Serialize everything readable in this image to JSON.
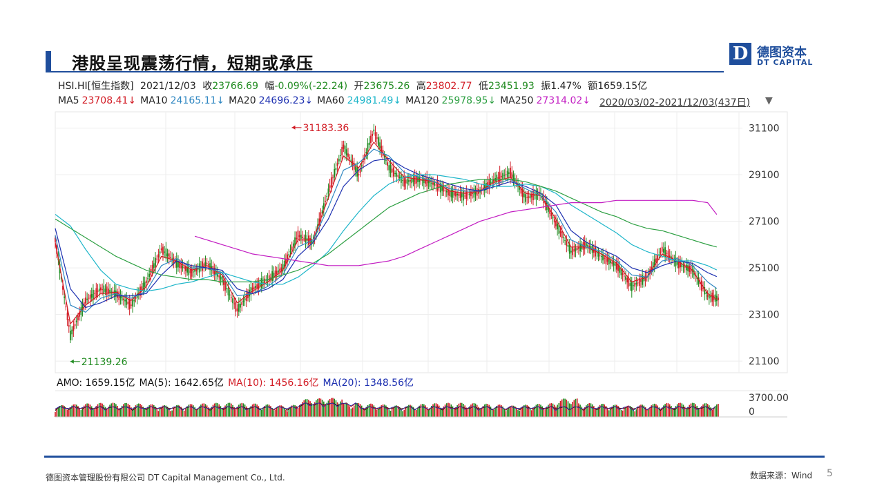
{
  "slide": {
    "title": "港股呈现震荡行情，短期或承压",
    "logo_mark": "D",
    "logo_cn": "德图资本",
    "logo_en": "DT CAPITAL",
    "footer_company": "德图资本管理股份有限公司 DT Capital Management Co., Ltd.",
    "source": "数据来源：Wind",
    "page": "5"
  },
  "quote": {
    "code": "HSI.HI[恒生指数]",
    "date": "2021/12/03",
    "close_label": "收",
    "close": "23766.69",
    "change_label": "幅",
    "change": "-0.09%(-22.24)",
    "open_label": "开",
    "open": "23675.26",
    "high_label": "高",
    "high": "23802.77",
    "low_label": "低",
    "low": "23451.93",
    "amplitude_label": "振",
    "amplitude": "1.47%",
    "amount_label": "额",
    "amount": "1659.15亿"
  },
  "ma_legend": [
    {
      "name": "MA5",
      "value": "23708.41↓",
      "color": "#d21b24"
    },
    {
      "name": "MA10",
      "value": "24165.11↓",
      "color": "#2e86c1"
    },
    {
      "name": "MA20",
      "value": "24696.23↓",
      "color": "#1c2fb0"
    },
    {
      "name": "MA60",
      "value": "24981.49↓",
      "color": "#1cb5c9"
    },
    {
      "name": "MA120",
      "value": "25978.95↓",
      "color": "#2ea043"
    },
    {
      "name": "MA250",
      "value": "27314.02↓",
      "color": "#c21cc2"
    }
  ],
  "range": "2020/03/02-2021/12/03(437日)",
  "amo": [
    {
      "label": "AMO: 1659.15亿",
      "color": "#111111"
    },
    {
      "label": "MA(5): 1642.65亿",
      "color": "#111111"
    },
    {
      "label": "MA(10): 1456.16亿",
      "color": "#d21b24"
    },
    {
      "label": "MA(20): 1348.56亿",
      "color": "#1c2fb0"
    }
  ],
  "chart_data": {
    "type": "line",
    "title": "HSI.HI[恒生指数]",
    "ylim": [
      20600,
      31800
    ],
    "y_ticks": [
      31100,
      29100,
      27100,
      25100,
      23100,
      21100
    ],
    "volume_ticks": [
      "3700.00",
      "0"
    ],
    "volume_ylim": [
      0,
      3700
    ],
    "annotations": [
      {
        "label": "31183.36",
        "x": 155,
        "y": 31183.36,
        "color": "#d21b24"
      },
      {
        "label": "21139.26",
        "x": 9,
        "y": 21139.26,
        "color": "#1f8a1f"
      }
    ],
    "x": [
      0,
      10,
      20,
      30,
      40,
      50,
      60,
      70,
      80,
      90,
      100,
      110,
      120,
      130,
      140,
      150,
      160,
      170,
      180,
      190,
      200,
      210,
      220,
      230,
      240,
      250,
      260,
      270,
      280,
      290,
      300,
      310,
      320,
      330,
      340,
      350,
      360,
      370,
      380,
      390,
      400,
      410,
      420,
      430,
      437
    ],
    "series": [
      {
        "name": "HSI.HI[恒生指数]",
        "color": "#d21b24",
        "values": [
          26300,
          22200,
          23700,
          24200,
          24000,
          23500,
          24500,
          25900,
          25300,
          24900,
          25300,
          24600,
          23300,
          24200,
          24600,
          25100,
          26500,
          26200,
          28400,
          30300,
          29100,
          31000,
          29400,
          28800,
          28900,
          28700,
          28300,
          28200,
          28400,
          28900,
          29200,
          28100,
          28300,
          27000,
          25800,
          26100,
          25600,
          25200,
          24300,
          24700,
          25900,
          25300,
          25000,
          23900,
          23770
        ]
      },
      {
        "name": "MA5",
        "color": "#d21b24",
        "values": [
          26200,
          22700,
          23500,
          24000,
          24050,
          23700,
          24300,
          25600,
          25400,
          25000,
          25200,
          24800,
          23600,
          24100,
          24500,
          25000,
          26300,
          26300,
          28100,
          29900,
          29400,
          30500,
          29700,
          29000,
          28900,
          28800,
          28400,
          28300,
          28400,
          28800,
          29000,
          28300,
          28200,
          27200,
          26000,
          26000,
          25700,
          25300,
          24500,
          24700,
          25700,
          25400,
          25000,
          24000,
          23710
        ]
      },
      {
        "name": "MA10",
        "color": "#2e86c1",
        "values": [
          26500,
          23500,
          23200,
          23800,
          24000,
          23800,
          24100,
          25200,
          25500,
          25100,
          25100,
          24900,
          23900,
          24000,
          24300,
          24800,
          26000,
          26300,
          27700,
          29300,
          29600,
          30200,
          29900,
          29200,
          29000,
          28800,
          28500,
          28400,
          28400,
          28700,
          28900,
          28500,
          28200,
          27500,
          26300,
          26000,
          25800,
          25400,
          24800,
          24700,
          25400,
          25500,
          25200,
          24500,
          24170
        ]
      },
      {
        "name": "MA20",
        "color": "#1c2fb0",
        "values": [
          26800,
          24200,
          23400,
          23600,
          23900,
          23900,
          24000,
          24800,
          25400,
          25200,
          25100,
          25000,
          24200,
          24000,
          24200,
          24600,
          25600,
          26200,
          27200,
          28600,
          29300,
          29700,
          29800,
          29400,
          29100,
          28900,
          28700,
          28500,
          28400,
          28600,
          28800,
          28600,
          28300,
          27800,
          26700,
          26200,
          25900,
          25600,
          25100,
          24900,
          25200,
          25400,
          25300,
          24900,
          24700
        ]
      },
      {
        "name": "MA60",
        "color": "#1cb5c9",
        "values": [
          27400,
          26900,
          25900,
          25000,
          24400,
          24200,
          24100,
          24200,
          24400,
          24500,
          24700,
          24900,
          24700,
          24500,
          24400,
          24400,
          24700,
          25200,
          25800,
          26700,
          27500,
          28200,
          28700,
          29000,
          29100,
          29100,
          29000,
          28900,
          28700,
          28600,
          28600,
          28700,
          28600,
          28300,
          27800,
          27400,
          27000,
          26600,
          26100,
          25800,
          25600,
          25400,
          25400,
          25200,
          24980
        ]
      },
      {
        "name": "MA120",
        "color": "#2ea043",
        "values": [
          27200,
          26800,
          26400,
          26000,
          25600,
          25300,
          25000,
          24800,
          24700,
          24600,
          24600,
          24500,
          24500,
          24500,
          24600,
          24800,
          25000,
          25300,
          25700,
          26200,
          26700,
          27200,
          27700,
          28000,
          28300,
          28500,
          28700,
          28800,
          28900,
          28900,
          28900,
          28800,
          28600,
          28400,
          28100,
          27800,
          27500,
          27300,
          27000,
          26800,
          26700,
          26500,
          26300,
          26100,
          25980
        ]
      },
      {
        "name": "MA250",
        "color": "#c21cc2",
        "values": [
          null,
          null,
          null,
          null,
          null,
          null,
          null,
          null,
          null,
          26500,
          26300,
          26100,
          25900,
          25700,
          25600,
          25500,
          25400,
          25300,
          25200,
          25200,
          25200,
          25300,
          25400,
          25600,
          25900,
          26200,
          26500,
          26800,
          27100,
          27300,
          27500,
          27600,
          27700,
          27800,
          27900,
          27900,
          27900,
          28000,
          28000,
          28000,
          28000,
          28000,
          28000,
          27900,
          27310
        ]
      }
    ]
  }
}
